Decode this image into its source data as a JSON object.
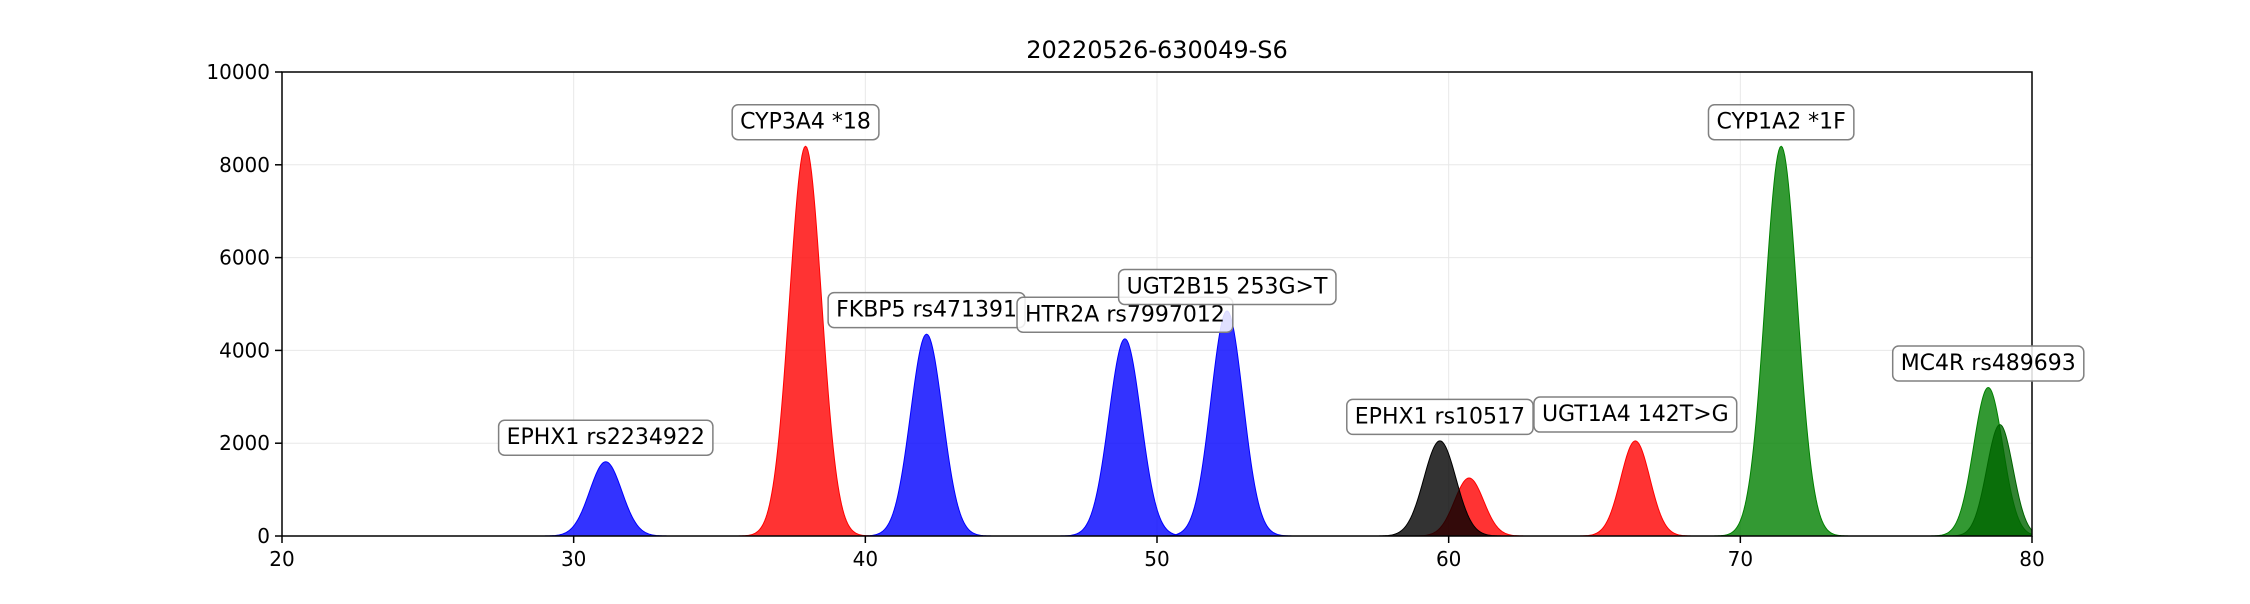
{
  "chart_data": {
    "type": "area",
    "title": "20220526-630049-S6",
    "xlabel": "",
    "ylabel": "",
    "xlim": [
      20,
      80
    ],
    "ylim": [
      0,
      10000
    ],
    "xticks": [
      20,
      30,
      40,
      50,
      60,
      70,
      80
    ],
    "yticks": [
      0,
      2000,
      4000,
      6000,
      8000,
      10000
    ],
    "grid": true,
    "legend": "none",
    "series": [
      {
        "color": "#0000ff",
        "peaks": [
          {
            "x": 31.1,
            "height": 1600,
            "sigma": 0.55
          },
          {
            "x": 42.1,
            "height": 4350,
            "sigma": 0.55
          },
          {
            "x": 48.9,
            "height": 4250,
            "sigma": 0.55
          },
          {
            "x": 52.4,
            "height": 4850,
            "sigma": 0.55
          }
        ]
      },
      {
        "color": "#ff0000",
        "peaks": [
          {
            "x": 37.95,
            "height": 8400,
            "sigma": 0.55
          },
          {
            "x": 60.7,
            "height": 1250,
            "sigma": 0.5
          },
          {
            "x": 66.4,
            "height": 2050,
            "sigma": 0.5
          }
        ]
      },
      {
        "color": "#000000",
        "peaks": [
          {
            "x": 59.7,
            "height": 2050,
            "sigma": 0.55
          }
        ]
      },
      {
        "color": "#008000",
        "peaks": [
          {
            "x": 71.4,
            "height": 8400,
            "sigma": 0.55
          },
          {
            "x": 78.5,
            "height": 3200,
            "sigma": 0.5
          }
        ]
      },
      {
        "color": "#006400",
        "peaks": [
          {
            "x": 78.9,
            "height": 2400,
            "sigma": 0.45
          }
        ]
      }
    ],
    "annotations": [
      {
        "text": "EPHX1 rs2234922",
        "x": 31.1,
        "y": 2150
      },
      {
        "text": "CYP3A4 *18",
        "x": 37.95,
        "y": 8950
      },
      {
        "text": "FKBP5 rs471391",
        "x": 42.1,
        "y": 4900
      },
      {
        "text": "HTR2A rs7997012",
        "x": 48.9,
        "y": 4800
      },
      {
        "text": "UGT2B15 253G>T",
        "x": 52.4,
        "y": 5400
      },
      {
        "text": "EPHX1 rs10517",
        "x": 59.7,
        "y": 2600
      },
      {
        "text": "UGT1A4 142T>G",
        "x": 66.4,
        "y": 2650
      },
      {
        "text": "CYP1A2 *1F",
        "x": 71.4,
        "y": 8950
      },
      {
        "text": "MC4R rs489693",
        "x": 78.5,
        "y": 3750
      }
    ]
  }
}
